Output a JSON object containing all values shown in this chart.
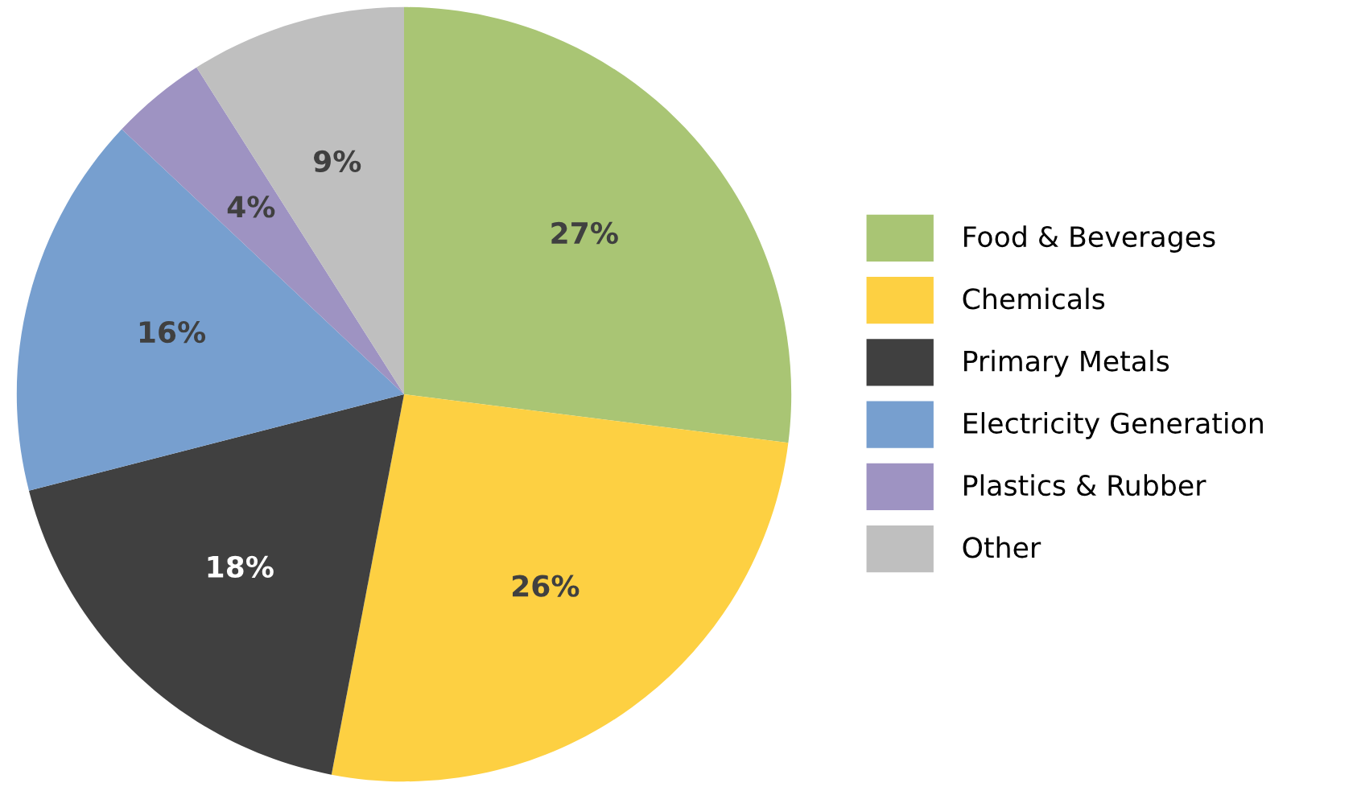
{
  "chart_data": {
    "type": "pie",
    "categories": [
      "Food & Beverages",
      "Chemicals",
      "Primary Metals",
      "Electricity Generation",
      "Plastics & Rubber",
      "Other"
    ],
    "values": [
      27,
      26,
      18,
      16,
      4,
      9
    ],
    "colors": [
      "#a9c574",
      "#fdd042",
      "#404040",
      "#779fcf",
      "#9e93c2",
      "#bfbfbf"
    ],
    "value_labels": [
      "27%",
      "26%",
      "18%",
      "16%",
      "4%",
      "9%"
    ],
    "legend": "right"
  }
}
